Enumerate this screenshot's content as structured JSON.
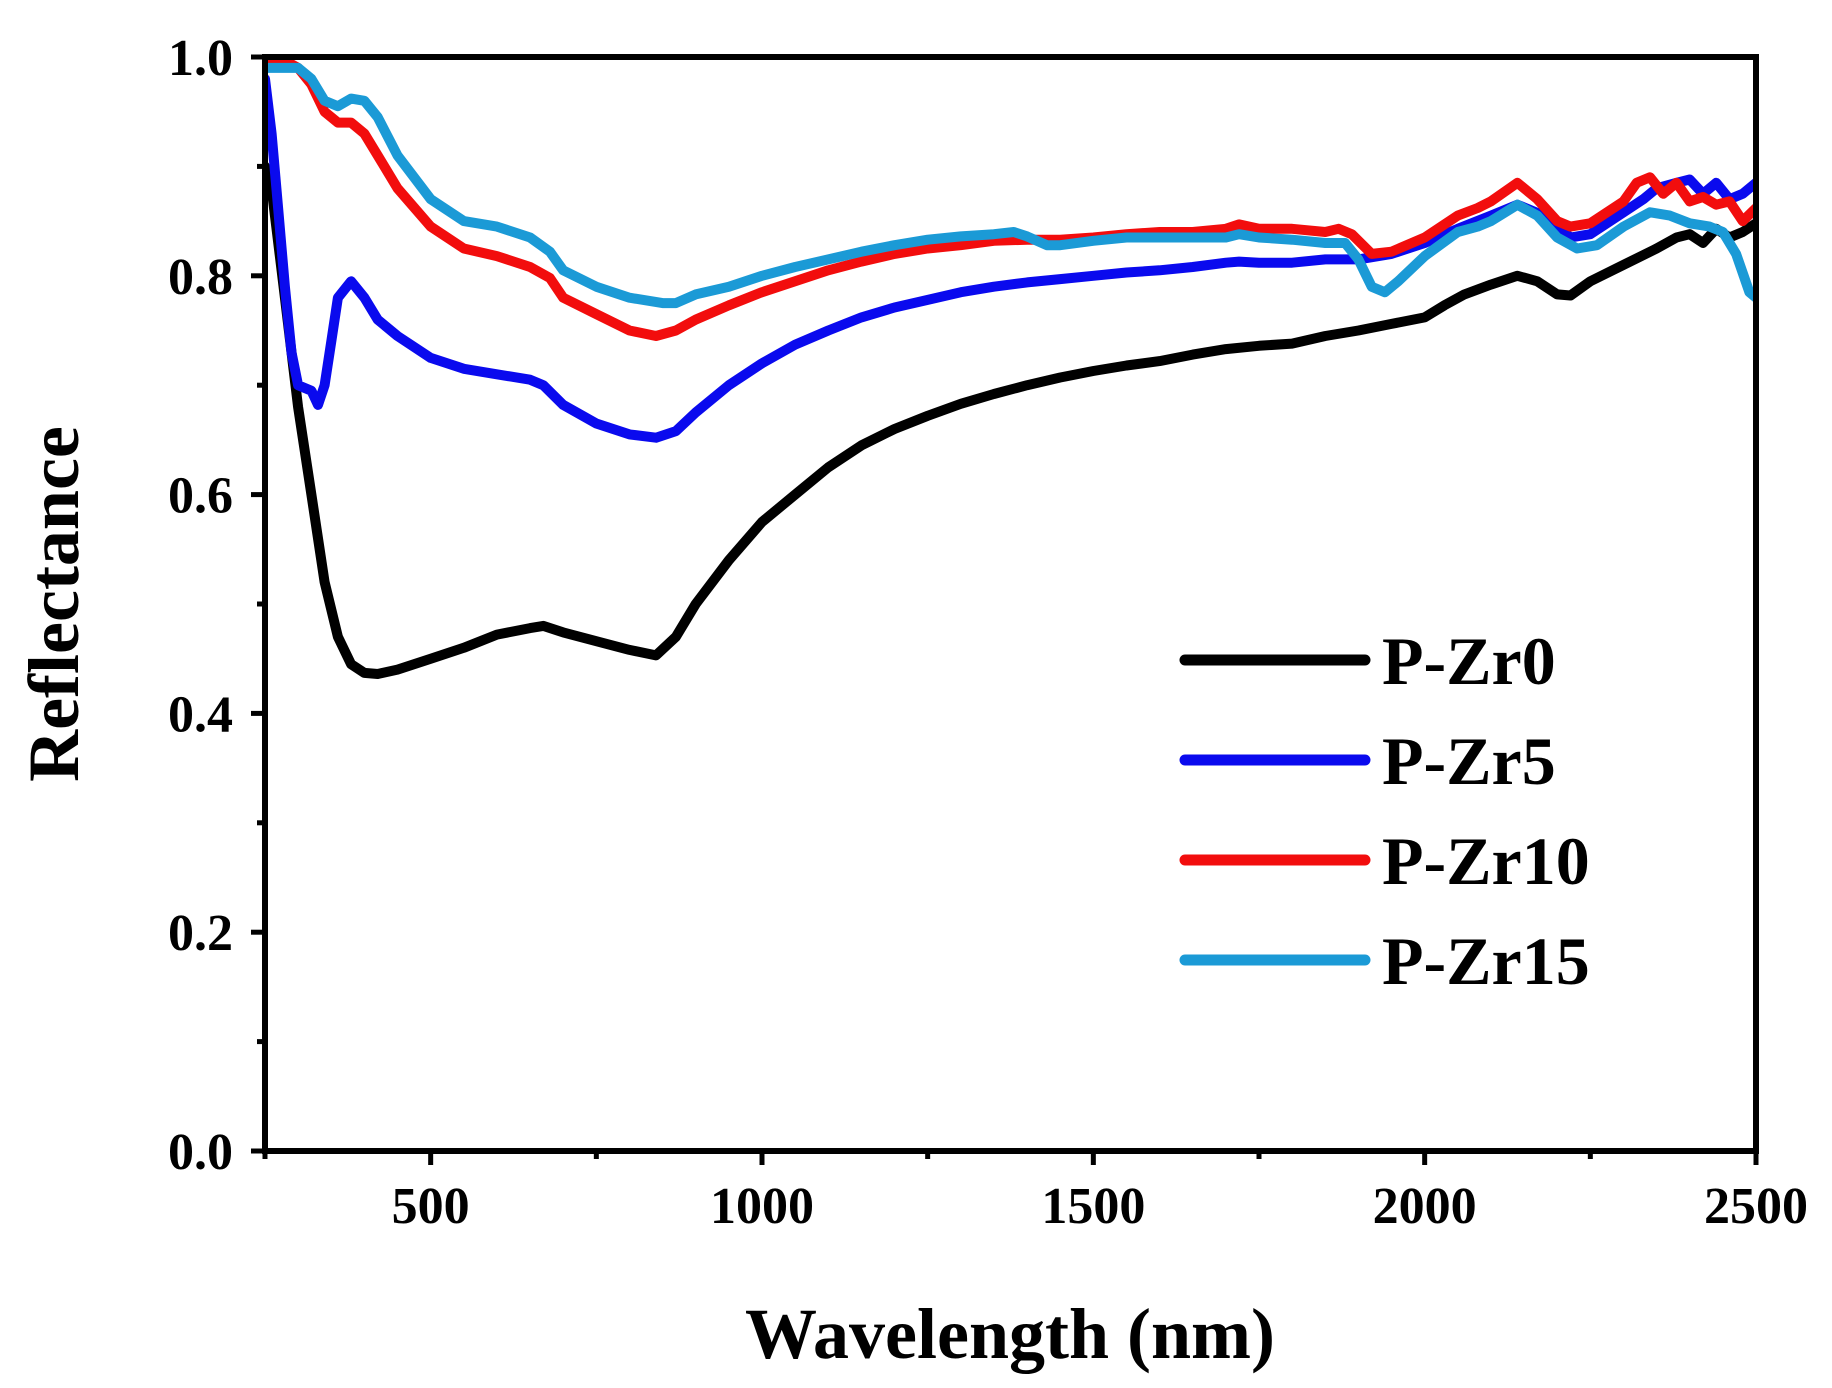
{
  "chart_data": {
    "type": "line",
    "title": "",
    "xlabel": "Wavelength (nm)",
    "ylabel": "Reflectance",
    "xlim": [
      250,
      2500
    ],
    "ylim": [
      0.0,
      1.0
    ],
    "xticks": [
      500,
      1000,
      1500,
      2000,
      2500
    ],
    "xtick_labels": [
      "500",
      "1000",
      "1500",
      "2000",
      "2500"
    ],
    "yticks": [
      0.0,
      0.2,
      0.4,
      0.6,
      0.8,
      1.0
    ],
    "ytick_labels": [
      "0.0",
      "0.2",
      "0.4",
      "0.6",
      "0.8",
      "1.0"
    ],
    "grid": false,
    "legend_position": "center-right",
    "series": [
      {
        "name": "P-Zr0",
        "color": "#000000",
        "x": [
          250,
          260,
          280,
          300,
          320,
          340,
          360,
          380,
          400,
          420,
          450,
          500,
          550,
          600,
          650,
          670,
          700,
          750,
          800,
          840,
          870,
          900,
          950,
          1000,
          1050,
          1100,
          1150,
          1200,
          1250,
          1300,
          1350,
          1400,
          1450,
          1500,
          1550,
          1600,
          1650,
          1700,
          1750,
          1800,
          1850,
          1900,
          1950,
          2000,
          2030,
          2060,
          2100,
          2140,
          2170,
          2200,
          2220,
          2250,
          2300,
          2350,
          2380,
          2400,
          2420,
          2440,
          2460,
          2480,
          2500
        ],
        "y": [
          0.9,
          0.88,
          0.78,
          0.68,
          0.6,
          0.52,
          0.47,
          0.445,
          0.437,
          0.436,
          0.44,
          0.45,
          0.46,
          0.472,
          0.478,
          0.48,
          0.474,
          0.466,
          0.458,
          0.453,
          0.47,
          0.5,
          0.54,
          0.575,
          0.6,
          0.625,
          0.645,
          0.66,
          0.672,
          0.683,
          0.692,
          0.7,
          0.707,
          0.713,
          0.718,
          0.722,
          0.728,
          0.733,
          0.736,
          0.738,
          0.745,
          0.75,
          0.756,
          0.762,
          0.773,
          0.783,
          0.792,
          0.8,
          0.795,
          0.783,
          0.782,
          0.795,
          0.81,
          0.825,
          0.835,
          0.838,
          0.83,
          0.843,
          0.835,
          0.84,
          0.848
        ]
      },
      {
        "name": "P-Zr5",
        "color": "#0a0aee",
        "x": [
          250,
          260,
          270,
          280,
          290,
          300,
          320,
          330,
          340,
          350,
          360,
          380,
          400,
          420,
          450,
          500,
          550,
          600,
          650,
          670,
          700,
          750,
          800,
          840,
          870,
          900,
          950,
          1000,
          1050,
          1100,
          1150,
          1200,
          1250,
          1300,
          1350,
          1400,
          1450,
          1500,
          1550,
          1600,
          1650,
          1700,
          1720,
          1750,
          1800,
          1850,
          1880,
          1900,
          1950,
          2000,
          2050,
          2100,
          2140,
          2180,
          2220,
          2250,
          2300,
          2330,
          2350,
          2380,
          2400,
          2420,
          2440,
          2460,
          2480,
          2500
        ],
        "y": [
          0.98,
          0.93,
          0.86,
          0.79,
          0.73,
          0.7,
          0.695,
          0.682,
          0.7,
          0.74,
          0.78,
          0.795,
          0.78,
          0.76,
          0.745,
          0.725,
          0.715,
          0.71,
          0.705,
          0.7,
          0.682,
          0.665,
          0.655,
          0.652,
          0.658,
          0.675,
          0.7,
          0.72,
          0.737,
          0.75,
          0.762,
          0.771,
          0.778,
          0.785,
          0.79,
          0.794,
          0.797,
          0.8,
          0.803,
          0.805,
          0.808,
          0.812,
          0.813,
          0.812,
          0.812,
          0.815,
          0.815,
          0.815,
          0.82,
          0.83,
          0.843,
          0.855,
          0.865,
          0.855,
          0.835,
          0.838,
          0.858,
          0.87,
          0.88,
          0.885,
          0.888,
          0.875,
          0.885,
          0.87,
          0.875,
          0.885
        ]
      },
      {
        "name": "P-Zr10",
        "color": "#f20d0d",
        "x": [
          250,
          270,
          300,
          320,
          340,
          360,
          380,
          400,
          420,
          450,
          500,
          550,
          600,
          650,
          680,
          700,
          750,
          800,
          840,
          870,
          900,
          950,
          1000,
          1050,
          1100,
          1150,
          1200,
          1250,
          1300,
          1350,
          1400,
          1450,
          1500,
          1550,
          1600,
          1650,
          1700,
          1720,
          1750,
          1800,
          1850,
          1870,
          1890,
          1920,
          1950,
          2000,
          2050,
          2080,
          2100,
          2140,
          2170,
          2200,
          2220,
          2250,
          2300,
          2320,
          2340,
          2360,
          2380,
          2400,
          2420,
          2440,
          2460,
          2480,
          2500
        ],
        "y": [
          0.995,
          1.0,
          0.99,
          0.975,
          0.95,
          0.94,
          0.94,
          0.93,
          0.91,
          0.88,
          0.845,
          0.825,
          0.818,
          0.808,
          0.798,
          0.78,
          0.765,
          0.75,
          0.745,
          0.75,
          0.76,
          0.773,
          0.785,
          0.795,
          0.805,
          0.813,
          0.82,
          0.825,
          0.828,
          0.832,
          0.833,
          0.833,
          0.835,
          0.838,
          0.84,
          0.84,
          0.843,
          0.847,
          0.843,
          0.843,
          0.84,
          0.843,
          0.838,
          0.82,
          0.822,
          0.835,
          0.855,
          0.862,
          0.868,
          0.885,
          0.87,
          0.85,
          0.845,
          0.848,
          0.868,
          0.885,
          0.89,
          0.875,
          0.885,
          0.868,
          0.872,
          0.865,
          0.868,
          0.85,
          0.862
        ]
      },
      {
        "name": "P-Zr15",
        "color": "#1b9ad6",
        "x": [
          250,
          270,
          300,
          320,
          340,
          360,
          380,
          400,
          420,
          450,
          500,
          550,
          600,
          650,
          680,
          700,
          750,
          800,
          850,
          870,
          900,
          950,
          1000,
          1050,
          1100,
          1150,
          1200,
          1250,
          1300,
          1350,
          1380,
          1400,
          1430,
          1450,
          1500,
          1550,
          1600,
          1650,
          1700,
          1720,
          1750,
          1800,
          1850,
          1880,
          1900,
          1920,
          1940,
          1960,
          2000,
          2050,
          2080,
          2100,
          2140,
          2170,
          2200,
          2230,
          2260,
          2300,
          2340,
          2370,
          2400,
          2430,
          2450,
          2470,
          2490,
          2500
        ],
        "y": [
          0.99,
          0.99,
          0.99,
          0.98,
          0.96,
          0.955,
          0.962,
          0.96,
          0.945,
          0.91,
          0.87,
          0.85,
          0.845,
          0.835,
          0.822,
          0.805,
          0.79,
          0.78,
          0.775,
          0.775,
          0.783,
          0.79,
          0.8,
          0.808,
          0.815,
          0.822,
          0.828,
          0.833,
          0.836,
          0.838,
          0.84,
          0.836,
          0.828,
          0.828,
          0.832,
          0.835,
          0.835,
          0.835,
          0.835,
          0.838,
          0.835,
          0.833,
          0.83,
          0.83,
          0.815,
          0.79,
          0.785,
          0.795,
          0.818,
          0.84,
          0.845,
          0.85,
          0.865,
          0.855,
          0.835,
          0.825,
          0.828,
          0.845,
          0.858,
          0.855,
          0.848,
          0.845,
          0.84,
          0.82,
          0.785,
          0.78
        ]
      }
    ]
  }
}
